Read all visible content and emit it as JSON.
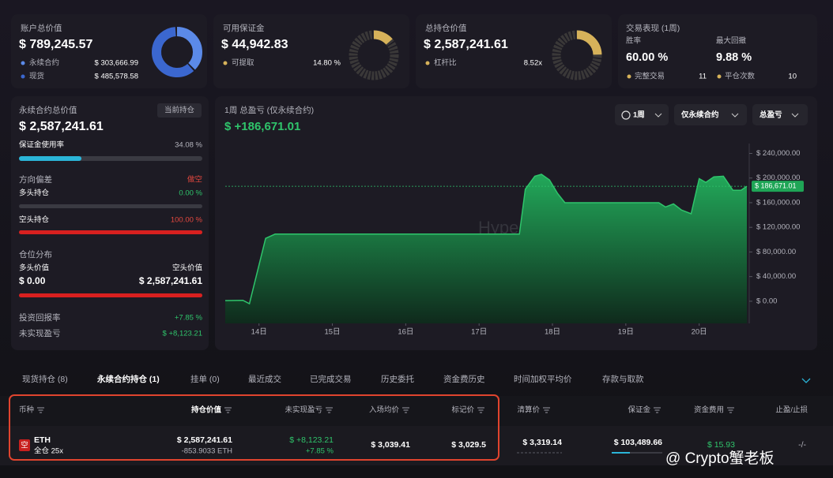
{
  "cards": [
    {
      "title": "账户总价值",
      "value": "$ 789,245.57",
      "items": [
        {
          "label": "永续合约",
          "value": {
            "value": 303666.99,
            "label": "$ 303,666.99"
          }
        },
        {
          "label": "现货",
          "value": {
            "value": 485578.58,
            "label": "$ 485,578.58"
          }
        }
      ]
    },
    {
      "title": "可用保证金",
      "value": "$ 44,942.83",
      "items": [
        {
          "label": "可提取",
          "value": {
            "value": 14.8,
            "label": "14.80 %"
          }
        }
      ]
    },
    {
      "title": "总持仓价值",
      "value": "$ 2,587,241.61",
      "items": [
        {
          "label": "杠杆比",
          "value": "8.52x"
        }
      ]
    },
    {
      "title": "交易表现 (1周)",
      "stats": [
        {
          "label": "胜率",
          "value": "60.00 %"
        },
        {
          "label": "最大回撤",
          "value": "9.88 %"
        }
      ],
      "items": [
        {
          "label": "完整交易",
          "value": 11
        },
        {
          "label": "平仓次数",
          "value": 10
        }
      ]
    }
  ],
  "perp_panel": {
    "title": "永续合约总价值",
    "badge": "当前持仓",
    "value": "$ 2,587,241.61",
    "margin_usage": {
      "label": "保证金使用率",
      "value": {
        "value": 34.08,
        "label": "34.08 %"
      }
    },
    "bias": {
      "label": "方向偏差",
      "value": "做空"
    },
    "long": {
      "label": "多头持仓",
      "value": {
        "value": 0,
        "label": "0.00 %"
      }
    },
    "short": {
      "label": "空头持仓",
      "value": {
        "value": 100,
        "label": "100.00 %"
      }
    },
    "distribution": {
      "title": "仓位分布",
      "long_label": "多头价值",
      "short_label": "空头价值",
      "long_value": {
        "value": 0,
        "label": "$ 0.00"
      },
      "short_value": {
        "value": 2587241.61,
        "label": "$ 2,587,241.61"
      }
    },
    "roi": {
      "label": "投资回报率",
      "value": "+7.85 %"
    },
    "unrealized": {
      "label": "未实现盈亏",
      "value": "$ +8,123.21"
    }
  },
  "pnl_panel": {
    "title": "1周 总盈亏 (仅永续合约)",
    "value": "$ +186,671.01",
    "filters": [
      "1周",
      "仅永续合约",
      "总盈亏"
    ],
    "chart_data": {
      "type": "area",
      "color": "#2fc46b",
      "watermark": "Hyperbot",
      "x": [
        13.54,
        13.78,
        13.87,
        14.09,
        14.22,
        17.55,
        17.63,
        17.76,
        17.85,
        17.96,
        18.07,
        18.17,
        19.45,
        19.54,
        19.65,
        19.76,
        19.89,
        20.0,
        20.09,
        20.2,
        20.33,
        20.46,
        20.57,
        20.65
      ],
      "values": [
        1000,
        1500,
        -4000,
        102000,
        109000,
        109000,
        182000,
        203000,
        206000,
        197000,
        175000,
        160000,
        160000,
        153000,
        158000,
        148000,
        142000,
        199000,
        193000,
        202000,
        203000,
        180000,
        180000,
        186671.01
      ],
      "xlim": [
        13.54,
        20.65
      ],
      "xticks": [
        {
          "value": 14,
          "label": "14日"
        },
        {
          "value": 15,
          "label": "15日"
        },
        {
          "value": 16,
          "label": "16日"
        },
        {
          "value": 17,
          "label": "17日"
        },
        {
          "value": 18,
          "label": "18日"
        },
        {
          "value": 19,
          "label": "19日"
        },
        {
          "value": 20,
          "label": "20日"
        }
      ],
      "ylim": [
        -36000,
        256000
      ],
      "yticks": [
        {
          "value": 0,
          "label": "$ 0.00"
        },
        {
          "value": 40000,
          "label": "$ 40,000.00"
        },
        {
          "value": 80000,
          "label": "$ 80,000.00"
        },
        {
          "value": 120000,
          "label": "$ 120,000.00"
        },
        {
          "value": 160000,
          "label": "$ 160,000.00"
        },
        {
          "value": 200000,
          "label": "$ 200,000.00"
        },
        {
          "value": 240000,
          "label": "$ 240,000.00"
        }
      ],
      "reference_line": {
        "value": 186671.01,
        "label": "$ 186,671.01"
      }
    }
  },
  "tabs": {
    "items": [
      "现货持仓 (8)",
      "永续合约持仓 (1)",
      "挂单 (0)",
      "最近成交",
      "已完成交易",
      "历史委托",
      "资金费历史",
      "时间加权平均价",
      "存款与取款"
    ],
    "active": 1
  },
  "table": {
    "headers": [
      "币种",
      "持仓价值",
      "未实现盈亏",
      "入场均价",
      "标记价",
      "清算价",
      "保证金",
      "资金费用",
      "止盈/止损"
    ],
    "rows": [
      {
        "side": "空",
        "coin": "ETH",
        "mode": "全仓 25x",
        "position_value": "$ 2,587,241.61",
        "size": "-853.9033 ETH",
        "pnl": "$ +8,123.21",
        "pnl_pct": "+7.85 %",
        "entry": "$ 3,039.41",
        "mark": "$ 3,029.5",
        "liquidation": "$ 3,319.14",
        "margin": "$ 103,489.66",
        "funding": "$ 15.93",
        "tpsl": "-/-"
      }
    ]
  },
  "watermark": "@ Crypto蟹老板"
}
